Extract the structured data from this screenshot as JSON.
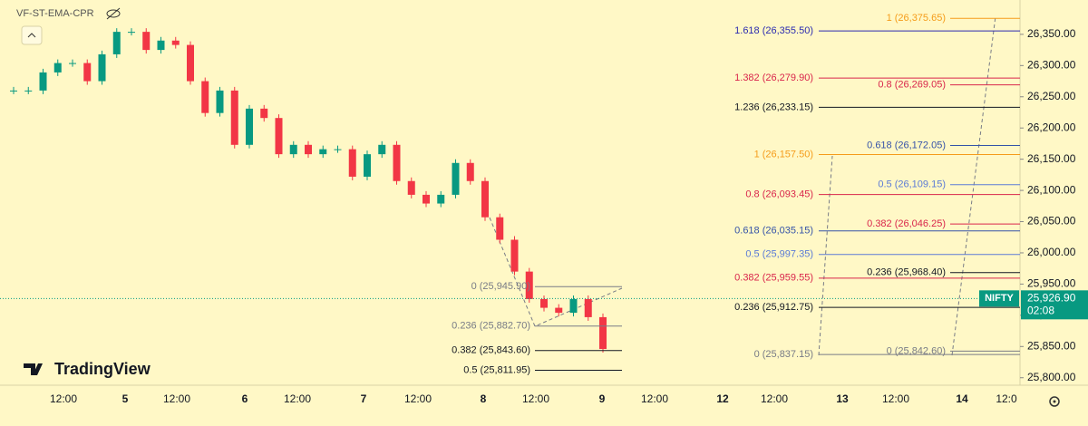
{
  "toolbar": {
    "indicator": "VF-ST-EMA-CPR"
  },
  "logo": "TradingView",
  "price_axis": {
    "ylim": [
      25788,
      26405
    ],
    "yticks": [
      {
        "value": 25800,
        "label": "25,800.00"
      },
      {
        "value": 25850,
        "label": "25,850.00"
      },
      {
        "value": 25900,
        "label": "25,900.00"
      },
      {
        "value": 25950,
        "label": "25,950.00"
      },
      {
        "value": 26000,
        "label": "26,000.00"
      },
      {
        "value": 26050,
        "label": "26,050.00"
      },
      {
        "value": 26100,
        "label": "26,100.00"
      },
      {
        "value": 26150,
        "label": "26,150.00"
      },
      {
        "value": 26200,
        "label": "26,200.00"
      },
      {
        "value": 26250,
        "label": "26,250.00"
      },
      {
        "value": 26300,
        "label": "26,300.00"
      },
      {
        "value": 26350,
        "label": "26,350.00"
      }
    ]
  },
  "time_axis": {
    "labels": [
      "12:00",
      "5",
      "12:00",
      "6",
      "12:00",
      "7",
      "12:00",
      "8",
      "12:00",
      "9",
      "12:00",
      "12",
      "12:00",
      "13",
      "12:00",
      "14",
      "12:0"
    ]
  },
  "price_series": {
    "up_color": "#089981",
    "down_color": "#f23645",
    "closes": [
      26260,
      26260,
      26289,
      26304,
      26304,
      26275,
      26318,
      26354,
      26354,
      26325,
      26340,
      26333,
      26275,
      26224,
      26260,
      26173,
      26231,
      26216,
      26158,
      26173,
      26158,
      26166,
      26166,
      26122,
      26158,
      26173,
      26115,
      26093,
      26079,
      26093,
      26144,
      26115,
      26057,
      26021,
      25970,
      25926,
      25912,
      25904,
      25926,
      25897,
      25846
    ]
  },
  "fib_groups": [
    {
      "levels": [
        {
          "label": "0 (25,945.90)",
          "price": 25945.9,
          "color": "#787b86"
        },
        {
          "label": "0.236 (25,882.70)",
          "price": 25882.7,
          "color": "#787b86"
        },
        {
          "label": "0.382 (25,843.60)",
          "price": 25843.6,
          "color": "#131722"
        },
        {
          "label": "0.5 (25,811.95)",
          "price": 25811.95,
          "color": "#131722"
        }
      ]
    },
    {
      "levels": [
        {
          "label": "1.618 (26,355.50)",
          "price": 26355.5,
          "color": "#2a2ab0"
        },
        {
          "label": "1.382 (26,279.90)",
          "price": 26279.9,
          "color": "#d9254b"
        },
        {
          "label": "1.236 (26,233.15)",
          "price": 26233.15,
          "color": "#131722"
        },
        {
          "label": "1 (26,157.50)",
          "price": 26157.5,
          "color": "#f59c1a"
        },
        {
          "label": "0.8 (26,093.45)",
          "price": 26093.45,
          "color": "#d9254b"
        },
        {
          "label": "0.618 (26,035.15)",
          "price": 26035.15,
          "color": "#3553a8"
        },
        {
          "label": "0.5 (25,997.35)",
          "price": 25997.35,
          "color": "#5b7bd6"
        },
        {
          "label": "0.382 (25,959.55)",
          "price": 25959.55,
          "color": "#d9254b"
        },
        {
          "label": "0.236 (25,912.75)",
          "price": 25912.75,
          "color": "#131722"
        },
        {
          "label": "0 (25,837.15)",
          "price": 25837.15,
          "color": "#787b86"
        }
      ]
    },
    {
      "levels": [
        {
          "label": "1 (26,375.65)",
          "price": 26375.65,
          "color": "#f59c1a"
        },
        {
          "label": "0.8 (26,269.05)",
          "price": 26269.05,
          "color": "#d9254b"
        },
        {
          "label": "0.618 (26,172.05)",
          "price": 26172.05,
          "color": "#3553a8"
        },
        {
          "label": "0.5 (26,109.15)",
          "price": 26109.15,
          "color": "#5b7bd6"
        },
        {
          "label": "0.382 (26,046.25)",
          "price": 26046.25,
          "color": "#d9254b"
        },
        {
          "label": "0.236 (25,968.40)",
          "price": 25968.4,
          "color": "#131722"
        },
        {
          "label": "0 (25,842.60)",
          "price": 25842.6,
          "color": "#787b86"
        }
      ]
    }
  ],
  "price_tag": {
    "symbol": "NIFTY",
    "price": {
      "value": 25926.9,
      "label": "25,926.90"
    },
    "countdown": "02:08",
    "color": "#089981"
  }
}
